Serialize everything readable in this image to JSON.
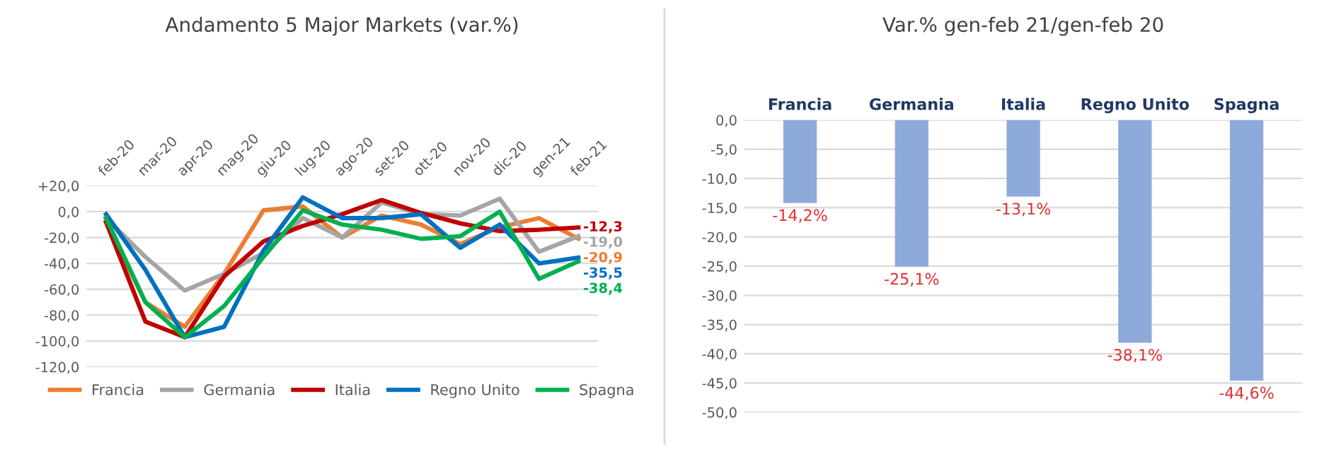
{
  "chart_data": [
    {
      "type": "line",
      "title": "Andamento 5 Major Markets (var.%)",
      "categories": [
        "feb-20",
        "mar-20",
        "apr-20",
        "mag-20",
        "giu-20",
        "lug-20",
        "ago-20",
        "set-20",
        "ott-20",
        "nov-20",
        "dic-20",
        "gen-21",
        "feb-21"
      ],
      "series": [
        {
          "name": "Francia",
          "color": "#ed7d31",
          "values": [
            -8,
            -70,
            -89,
            -48,
            1,
            4,
            -20,
            -3,
            -10,
            -25,
            -12,
            -5,
            -20.9
          ],
          "value_labels": [
            null,
            null,
            null,
            null,
            null,
            null,
            null,
            null,
            null,
            null,
            null,
            null,
            "-20,9"
          ]
        },
        {
          "name": "Germania",
          "color": "#a5a5a5",
          "values": [
            -5,
            -35,
            -61,
            -48,
            -32,
            -5,
            -20,
            7,
            -2,
            -3,
            10,
            -31,
            -19.0
          ],
          "value_labels": [
            null,
            null,
            null,
            null,
            null,
            null,
            null,
            null,
            null,
            null,
            null,
            null,
            "-19,0"
          ]
        },
        {
          "name": "Italia",
          "color": "#c00000",
          "values": [
            -8,
            -85,
            -97,
            -50,
            -23,
            -11,
            -2,
            9,
            -1,
            -9,
            -15,
            -14,
            -12.3
          ],
          "value_labels": [
            null,
            null,
            null,
            null,
            null,
            null,
            null,
            null,
            null,
            null,
            null,
            null,
            "-12,3"
          ]
        },
        {
          "name": "Regno Unito",
          "color": "#0070c0",
          "values": [
            -2,
            -45,
            -97,
            -89,
            -30,
            11,
            -5,
            -5,
            -2,
            -28,
            -10,
            -40,
            -35.5
          ],
          "value_labels": [
            null,
            null,
            null,
            null,
            null,
            null,
            null,
            null,
            null,
            null,
            null,
            null,
            "-35,5"
          ]
        },
        {
          "name": "Spagna",
          "color": "#00b050",
          "values": [
            -5,
            -70,
            -97,
            -73,
            -35,
            1,
            -10,
            -14,
            -21,
            -19,
            0,
            -52,
            -38.4
          ],
          "value_labels": [
            null,
            null,
            null,
            null,
            null,
            null,
            null,
            null,
            null,
            null,
            null,
            null,
            "-38,4"
          ]
        }
      ],
      "ylim": [
        -120,
        20
      ],
      "yticks": [
        {
          "value": 20,
          "label": "+20,0"
        },
        {
          "value": 0,
          "label": "0,0"
        },
        {
          "value": -20,
          "label": "-20,0"
        },
        {
          "value": -40,
          "label": "-40,0"
        },
        {
          "value": -60,
          "label": "-60,0"
        },
        {
          "value": -80,
          "label": "-80,0"
        },
        {
          "value": -100,
          "label": "-100,0"
        },
        {
          "value": -120,
          "label": "-120,0"
        }
      ],
      "grid": "y",
      "legend": "bottom",
      "marker": "none",
      "line_style": "solid"
    },
    {
      "type": "bar",
      "title": "Var.% gen-feb 21/gen-feb 20",
      "categories": [
        "Francia",
        "Germania",
        "Italia",
        "Regno Unito",
        "Spagna"
      ],
      "values": [
        -14.2,
        -25.1,
        -13.1,
        -38.1,
        -44.6
      ],
      "color": "#8eaadb",
      "value_labels": [
        "-14,2%",
        "-25,1%",
        "-13,1%",
        "-38,1%",
        "-44,6%"
      ],
      "ylim": [
        -50,
        0
      ],
      "yticks": [
        {
          "value": 0,
          "label": "0,0"
        },
        {
          "value": -5,
          "label": "-5,0"
        },
        {
          "value": -10,
          "label": "-10,0"
        },
        {
          "value": -15,
          "label": "-15,0"
        },
        {
          "value": -20,
          "label": "-20,0"
        },
        {
          "value": -25,
          "label": "-25,0"
        },
        {
          "value": -30,
          "label": "-30,0"
        },
        {
          "value": -35,
          "label": "-35,0"
        },
        {
          "value": -40,
          "label": "-40,0"
        },
        {
          "value": -45,
          "label": "-45,0"
        },
        {
          "value": -50,
          "label": "-50,0"
        }
      ],
      "grid": "y"
    }
  ]
}
